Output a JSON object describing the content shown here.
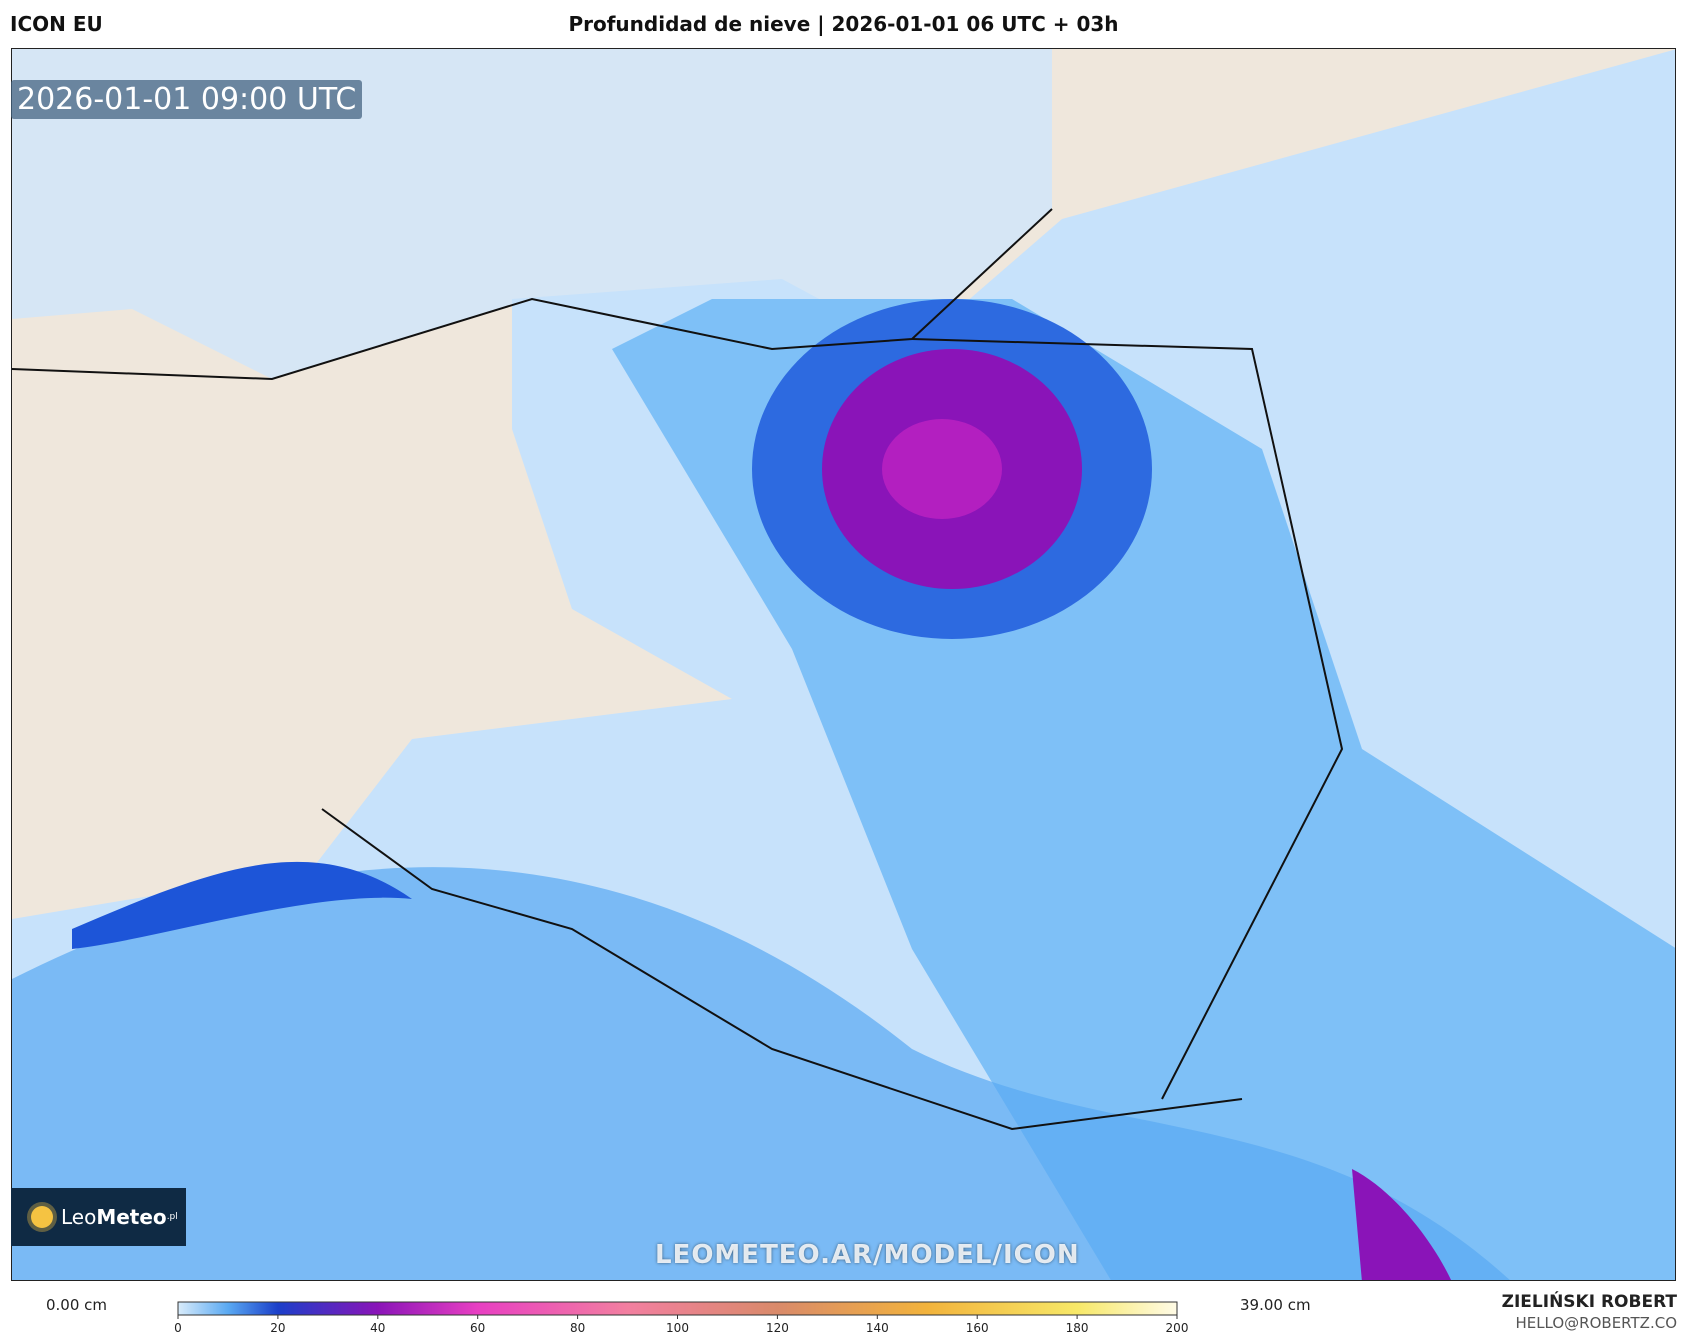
{
  "header": {
    "model": "ICON EU",
    "title": "Profundidad de nieve | 2026-01-01 06 UTC + 03h"
  },
  "map": {
    "timestamp": "2026-01-01 09:00 UTC",
    "watermark": "LEOMETEO.AR/MODEL/ICON"
  },
  "logo": {
    "part1": "Leo",
    "part2": "Meteo",
    "suffix": ".pl"
  },
  "colorbar": {
    "min_label": "0.00 cm",
    "max_label": "39.00 cm",
    "range": [
      0,
      200
    ],
    "ticks": [
      0,
      20,
      40,
      60,
      80,
      100,
      120,
      140,
      160,
      180,
      200
    ]
  },
  "credits": {
    "author": "ZIELIŃSKI ROBERT",
    "contact": "HELLO@ROBERTZ.CO"
  }
}
